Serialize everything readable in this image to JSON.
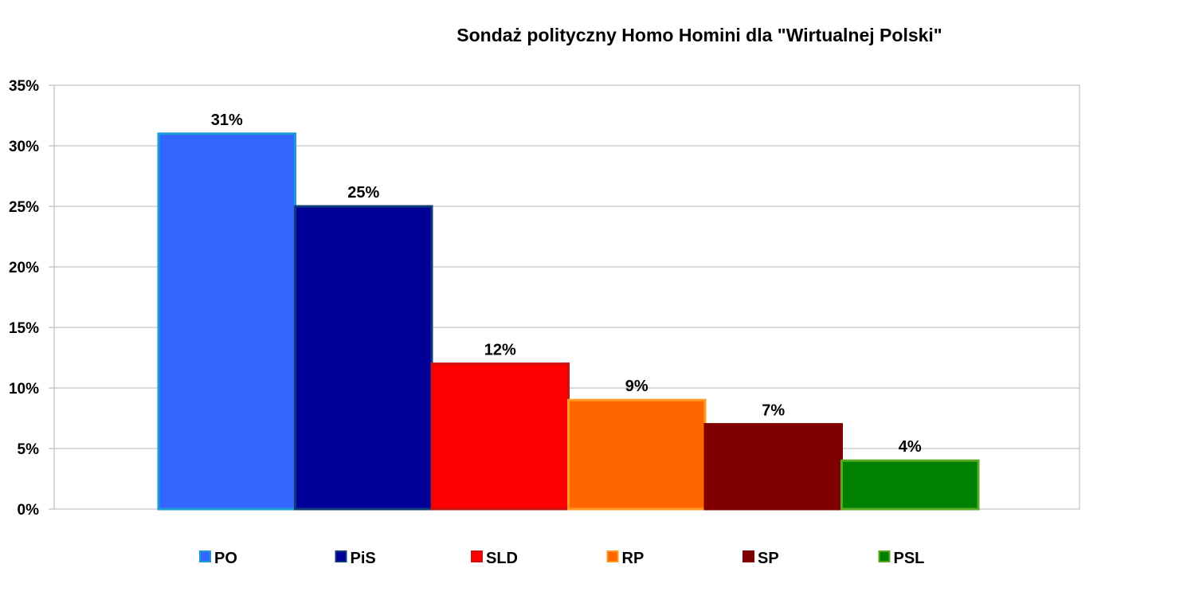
{
  "chart_data": {
    "type": "bar",
    "title": "Sondaż polityczny Homo Homini dla \"Wirtualnej Polski\"",
    "xlabel": "",
    "ylabel": "",
    "ylim": [
      0,
      35
    ],
    "yticks": [
      0,
      5,
      10,
      15,
      20,
      25,
      30,
      35
    ],
    "ytick_labels": [
      "0%",
      "5%",
      "10%",
      "15%",
      "20%",
      "25%",
      "30%",
      "35%"
    ],
    "grid": true,
    "legend_position": "bottom",
    "series": [
      {
        "name": "PO",
        "value": 31,
        "label": "31%",
        "color": "#3366ff",
        "border": "#1c9bd6"
      },
      {
        "name": "PiS",
        "value": 25,
        "label": "25%",
        "color": "#000099",
        "border": "#123a7a"
      },
      {
        "name": "SLD",
        "value": 12,
        "label": "12%",
        "color": "#ff0000",
        "border": "#cc1111"
      },
      {
        "name": "RP",
        "value": 9,
        "label": "9%",
        "color": "#ff6600",
        "border": "#ff9922"
      },
      {
        "name": "SP",
        "value": 7,
        "label": "7%",
        "color": "#800000",
        "border": "#800000"
      },
      {
        "name": "PSL",
        "value": 4,
        "label": "4%",
        "color": "#008000",
        "border": "#55aa22"
      }
    ]
  }
}
